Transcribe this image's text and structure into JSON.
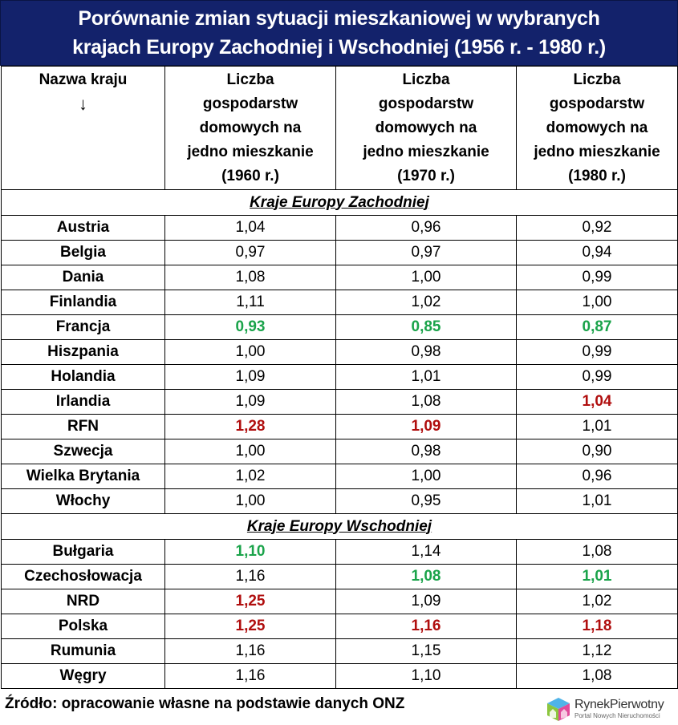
{
  "title": {
    "line1": "Porównanie zmian sytuacji mieszkaniowej w wybranych",
    "line2": "krajach Europy Zachodniej i Wschodniej (1956 r. - 1980 r.)"
  },
  "colors": {
    "banner": "#13226b",
    "good": "#1aa34a",
    "bad": "#b00e0e"
  },
  "header": {
    "country_label": "Nazwa kraju",
    "country_arrow": "↓",
    "columns": [
      {
        "l1": "Liczba",
        "l2": "gospodarstw",
        "l3": "domowych na",
        "l4": "jedno mieszkanie",
        "l5": "(1960 r.)"
      },
      {
        "l1": "Liczba",
        "l2": "gospodarstw",
        "l3": "domowych na",
        "l4": "jedno mieszkanie",
        "l5": "(1970 r.)"
      },
      {
        "l1": "Liczba",
        "l2": "gospodarstw",
        "l3": "domowych na",
        "l4": "jedno mieszkanie",
        "l5": "(1980 r.)"
      }
    ]
  },
  "sections": [
    {
      "label": "Kraje Europy Zachodniej",
      "rows": [
        {
          "country": "Austria",
          "v1960": "1,04",
          "v1970": "0,96",
          "v1980": "0,92"
        },
        {
          "country": "Belgia",
          "v1960": "0,97",
          "v1970": "0,97",
          "v1980": "0,94"
        },
        {
          "country": "Dania",
          "v1960": "1,08",
          "v1970": "1,00",
          "v1980": "0,99"
        },
        {
          "country": "Finlandia",
          "v1960": "1,11",
          "v1970": "1,02",
          "v1980": "1,00"
        },
        {
          "country": "Francja",
          "v1960": "0,93",
          "v1970": "0,85",
          "v1980": "0,87"
        },
        {
          "country": "Hiszpania",
          "v1960": "1,00",
          "v1970": "0,98",
          "v1980": "0,99"
        },
        {
          "country": "Holandia",
          "v1960": "1,09",
          "v1970": "1,01",
          "v1980": "0,99"
        },
        {
          "country": "Irlandia",
          "v1960": "1,09",
          "v1970": "1,08",
          "v1980": "1,04"
        },
        {
          "country": "RFN",
          "v1960": "1,28",
          "v1970": "1,09",
          "v1980": "1,01"
        },
        {
          "country": "Szwecja",
          "v1960": "1,00",
          "v1970": "0,98",
          "v1980": "0,90"
        },
        {
          "country": "Wielka Brytania",
          "v1960": "1,02",
          "v1970": "1,00",
          "v1980": "0,96"
        },
        {
          "country": "Włochy",
          "v1960": "1,00",
          "v1970": "0,95",
          "v1980": "1,01"
        }
      ]
    },
    {
      "label": "Kraje Europy Wschodniej",
      "rows": [
        {
          "country": "Bułgaria",
          "v1960": "1,10",
          "v1970": "1,14",
          "v1980": "1,08"
        },
        {
          "country": "Czechosłowacja",
          "v1960": "1,16",
          "v1970": "1,08",
          "v1980": "1,01"
        },
        {
          "country": "NRD",
          "v1960": "1,25",
          "v1970": "1,09",
          "v1980": "1,02"
        },
        {
          "country": "Polska",
          "v1960": "1,25",
          "v1970": "1,16",
          "v1980": "1,18"
        },
        {
          "country": "Rumunia",
          "v1960": "1,16",
          "v1970": "1,15",
          "v1980": "1,12"
        },
        {
          "country": "Węgry",
          "v1960": "1,16",
          "v1970": "1,10",
          "v1980": "1,08"
        }
      ]
    }
  ],
  "highlights": {
    "good": [
      "Francja:1960",
      "Francja:1970",
      "Francja:1980",
      "Bułgaria:1960",
      "Czechosłowacja:1970",
      "Czechosłowacja:1980"
    ],
    "bad": [
      "Irlandia:1980",
      "RFN:1960",
      "RFN:1970",
      "NRD:1960",
      "Polska:1960",
      "Polska:1970",
      "Polska:1980"
    ]
  },
  "footer": {
    "source": "Źródło: opracowanie własne na podstawie danych ONZ",
    "logo_name": "RynekPierwotny",
    "logo_sub": "Portal Nowych Nieruchomości"
  }
}
